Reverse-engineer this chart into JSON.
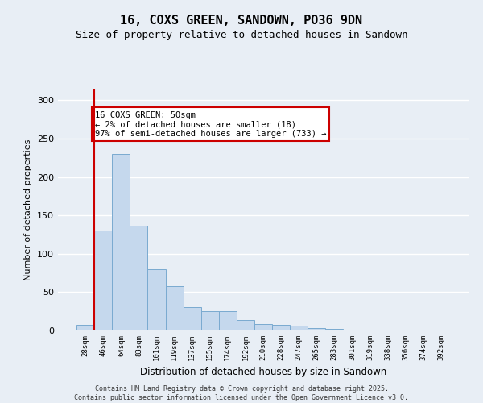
{
  "title": "16, COXS GREEN, SANDOWN, PO36 9DN",
  "subtitle": "Size of property relative to detached houses in Sandown",
  "xlabel": "Distribution of detached houses by size in Sandown",
  "ylabel": "Number of detached properties",
  "bar_labels": [
    "28sqm",
    "46sqm",
    "64sqm",
    "83sqm",
    "101sqm",
    "119sqm",
    "137sqm",
    "155sqm",
    "174sqm",
    "192sqm",
    "210sqm",
    "228sqm",
    "247sqm",
    "265sqm",
    "283sqm",
    "301sqm",
    "319sqm",
    "338sqm",
    "356sqm",
    "374sqm",
    "392sqm"
  ],
  "bar_values": [
    7,
    130,
    230,
    137,
    80,
    58,
    30,
    25,
    25,
    14,
    8,
    7,
    6,
    3,
    2,
    0,
    1,
    0,
    0,
    0,
    1
  ],
  "bar_color": "#c5d8ed",
  "bar_edge_color": "#7aaad0",
  "ylim": [
    0,
    315
  ],
  "yticks": [
    0,
    50,
    100,
    150,
    200,
    250,
    300
  ],
  "vline_color": "#cc0000",
  "annotation_text": "16 COXS GREEN: 50sqm\n← 2% of detached houses are smaller (18)\n97% of semi-detached houses are larger (733) →",
  "annotation_box_color": "#cc0000",
  "footer_text": "Contains HM Land Registry data © Crown copyright and database right 2025.\nContains public sector information licensed under the Open Government Licence v3.0.",
  "background_color": "#e8eef5",
  "grid_color": "#ffffff",
  "title_fontsize": 11,
  "subtitle_fontsize": 9
}
